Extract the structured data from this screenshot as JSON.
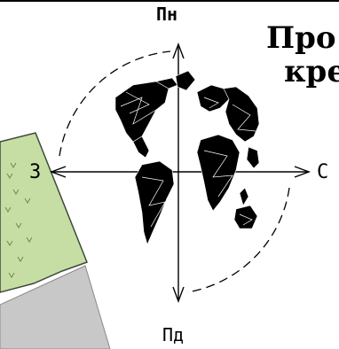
{
  "compass": {
    "north": "Пн",
    "south": "Пд",
    "west": "З",
    "east": "С"
  },
  "title": {
    "line1": "Про",
    "line2": "кре"
  },
  "colors": {
    "field": "#c6dea4",
    "road": "#c8c8c8",
    "ink": "#000000"
  }
}
